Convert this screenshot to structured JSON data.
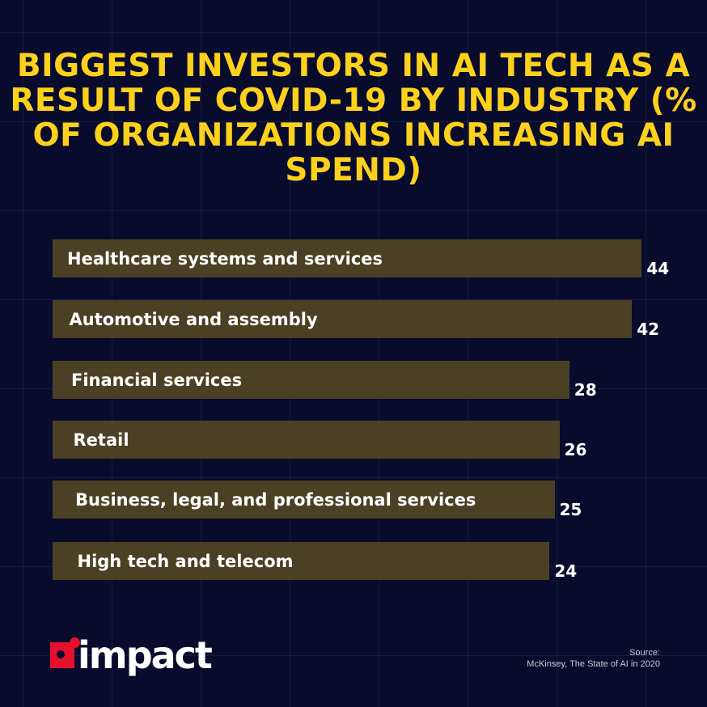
{
  "chart_data": {
    "type": "bar",
    "orientation": "horizontal",
    "title": "BIGGEST INVESTORS IN AI TECH AS A RESULT OF COVID-19 BY INDUSTRY (% OF ORGANIZATIONS INCREASING AI SPEND)",
    "categories": [
      "Healthcare systems and services",
      "Automotive and assembly",
      "Financial services",
      "Retail",
      "Business, legal, and professional services",
      "High tech and telecom"
    ],
    "values": [
      44,
      42,
      28,
      26,
      25,
      24
    ],
    "grid": false,
    "colors": {
      "bar": "#4a4124",
      "title": "#fcd11c",
      "background": "#090b2c"
    }
  },
  "logo": {
    "text": "impact",
    "color": "#e5102b"
  },
  "source": {
    "label": "Source:",
    "text": "McKinsey, The State of AI in 2020"
  }
}
